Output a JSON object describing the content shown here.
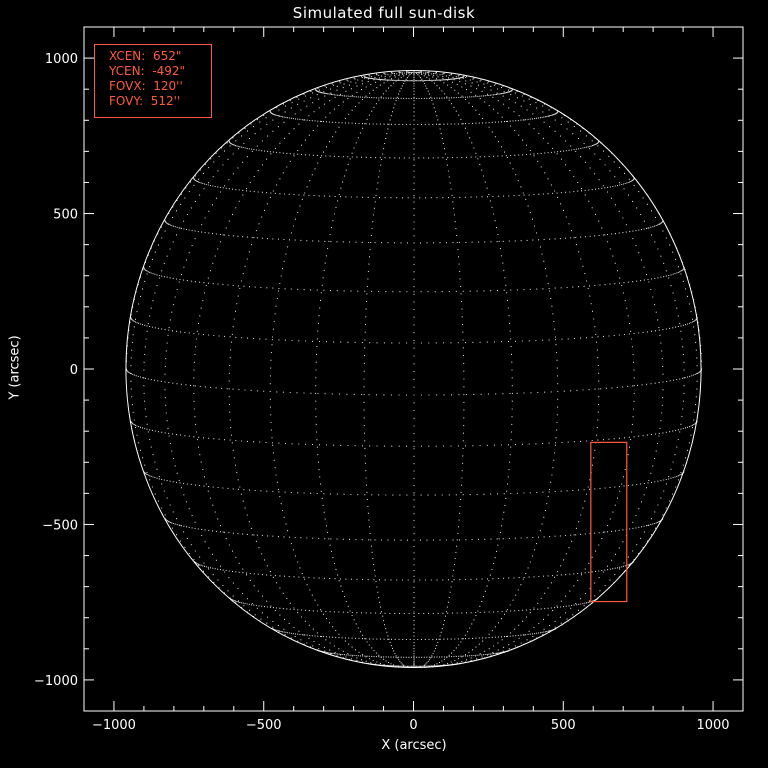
{
  "title": "Simulated full sun-disk",
  "colors": {
    "background": "#000000",
    "foreground": "#ffffff",
    "accent": "#ff5a3a"
  },
  "info_box": {
    "rows": [
      "XCEN:  652\"",
      "YCEN:  -492\"",
      "FOVX:  120''",
      "FOVY:  512''"
    ]
  },
  "chart_data": {
    "type": "scatter",
    "title": "Simulated full sun-disk",
    "xlabel": "X (arcsec)",
    "ylabel": "Y (arcsec)",
    "xlim": [
      -1100,
      1100
    ],
    "ylim": [
      -1100,
      1100
    ],
    "xticks": [
      -1000,
      -500,
      0,
      500,
      1000
    ],
    "yticks": [
      -1000,
      -500,
      0,
      500,
      1000
    ],
    "grid": false,
    "disk": {
      "center": [
        0,
        0
      ],
      "radius_arcsec": 960,
      "b0_deg": 5,
      "lat_lines_every_deg": 10,
      "lon_lines_every_deg": 10
    },
    "field_of_view": {
      "xcen": 652,
      "ycen": -492,
      "fovx": 120,
      "fovy": 512
    }
  }
}
